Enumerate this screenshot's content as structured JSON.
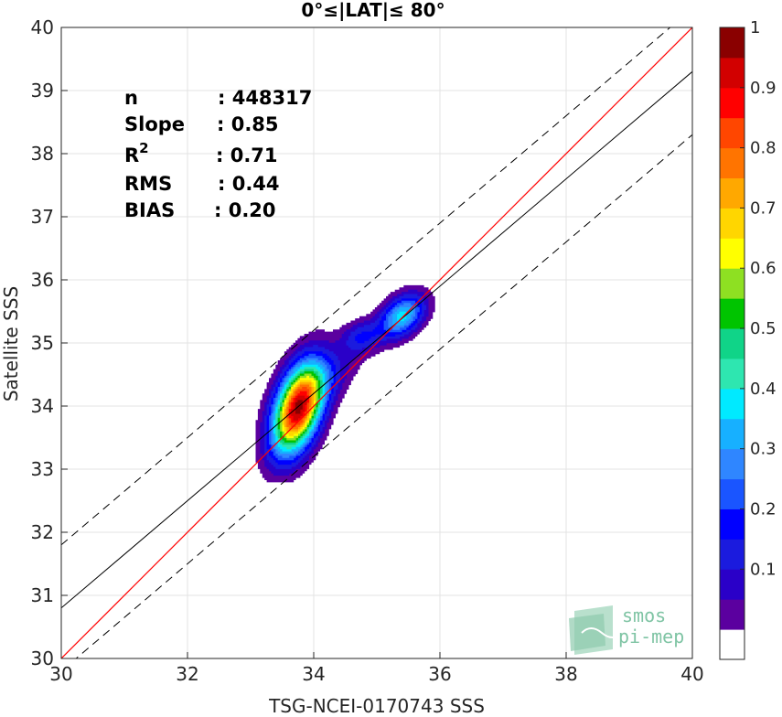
{
  "chart_data": {
    "type": "contour-density",
    "title": "0°≤|LAT|≤ 80°",
    "xlabel": "TSG-NCEI-0170743 SSS",
    "ylabel": "Satellite SSS",
    "xlim": [
      30,
      40
    ],
    "ylim": [
      30,
      40
    ],
    "xticks": [
      30,
      32,
      34,
      36,
      38,
      40
    ],
    "yticks": [
      30,
      31,
      32,
      33,
      34,
      35,
      36,
      37,
      38,
      39,
      40
    ],
    "grid": true,
    "stats": [
      {
        "label": "n",
        "value": ": 448317"
      },
      {
        "label": "Slope",
        "value": ": 0.85"
      },
      {
        "label": "R",
        "sup": "2",
        "value": ": 0.71"
      },
      {
        "label": "RMS",
        "value": ": 0.44"
      },
      {
        "label": "BIAS",
        "value": ": 0.20"
      }
    ],
    "lines": {
      "identity": {
        "slope": 1,
        "intercept": 0,
        "color": "#ff0000"
      },
      "regression": {
        "slope": 0.85,
        "intercept": 5.3,
        "color": "#000000"
      },
      "band_offset": 1.0
    },
    "density_peaks": [
      {
        "x": 33.75,
        "y": 33.97,
        "peak": 1.0,
        "sx": 0.28,
        "sy": 0.5,
        "rho": 0.45
      },
      {
        "x": 35.4,
        "y": 35.43,
        "peak": 0.42,
        "sx": 0.25,
        "sy": 0.24,
        "rho": 0.4
      },
      {
        "x": 34.75,
        "y": 35.1,
        "peak": 0.18,
        "sx": 0.22,
        "sy": 0.18,
        "rho": 0.2
      },
      {
        "x": 34.3,
        "y": 34.5,
        "peak": 0.1,
        "sx": 0.35,
        "sy": 0.35,
        "rho": 0.6
      }
    ],
    "colorbar": {
      "ticks": [
        0.1,
        0.2,
        0.3,
        0.4,
        0.5,
        0.6,
        0.7,
        0.8,
        0.9,
        1
      ],
      "tick_labels": [
        "0.1",
        "0.2",
        "0.3",
        "0.4",
        "0.5",
        "0.6",
        "0.7",
        "0.8",
        "0.9",
        "1"
      ],
      "levels": [
        0.05,
        0.1,
        0.15,
        0.2,
        0.25,
        0.3,
        0.35,
        0.4,
        0.45,
        0.5,
        0.55,
        0.6,
        0.65,
        0.7,
        0.75,
        0.8,
        0.85,
        0.9,
        0.95,
        1.0
      ],
      "colors": [
        "#ffffff",
        "#5b009f",
        "#2a00c8",
        "#1b1bde",
        "#0000ff",
        "#1a55ff",
        "#2f86ff",
        "#17b0ff",
        "#00eaff",
        "#2ee6b0",
        "#10d488",
        "#00c400",
        "#8ee022",
        "#ffff00",
        "#ffd600",
        "#ffa800",
        "#ff7400",
        "#ff4600",
        "#ff0000",
        "#d20000",
        "#8a0000"
      ]
    },
    "logo": {
      "line1": "smos",
      "line2": "pi-mep"
    }
  }
}
